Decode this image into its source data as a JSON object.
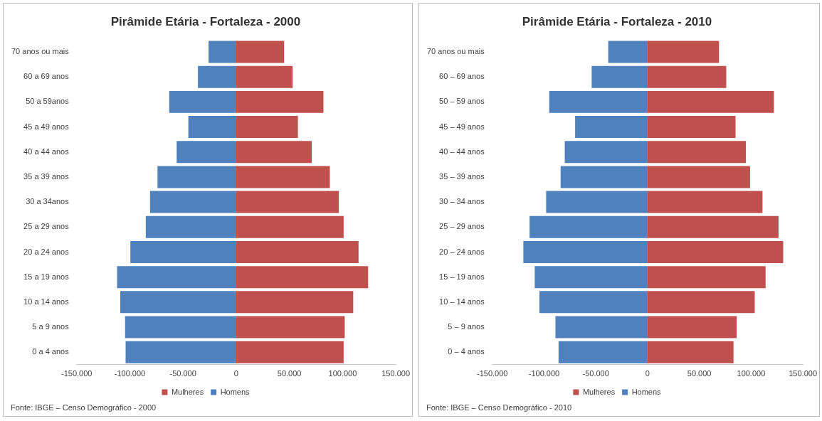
{
  "chart_data": [
    {
      "type": "bar",
      "orientation": "horizontal",
      "stacked": true,
      "title": "Pirâmide Etária - Fortaleza - 2000",
      "categories": [
        "70 anos ou mais",
        "60 a 69 anos",
        "50 a 59anos",
        "45 a 49 anos",
        "40 a 44 anos",
        "35 a 39 anos",
        "30 a 34anos",
        "25 a 29 anos",
        "20 a 24 anos",
        "15 a 19 anos",
        "10 a 14 anos",
        "5 a 9 anos",
        "0 a 4 anos"
      ],
      "series": [
        {
          "name": "Mulheres",
          "color": "#c0504d",
          "values": [
            45000,
            53000,
            82000,
            58000,
            71000,
            88000,
            96500,
            101000,
            115000,
            124000,
            110000,
            102000,
            101000
          ]
        },
        {
          "name": "Homens",
          "color": "#4f81bd",
          "values": [
            -26000,
            -36000,
            -63000,
            -45000,
            -56000,
            -74000,
            -81000,
            -85000,
            -99500,
            -112000,
            -109000,
            -104500,
            -104000
          ]
        }
      ],
      "xlim": [
        -150000,
        150000
      ],
      "xticks": [
        {
          "value": -150000,
          "label": "-150.000"
        },
        {
          "value": -100000,
          "label": "-100.000"
        },
        {
          "value": -50000,
          "label": "-50.000"
        },
        0,
        {
          "value": 50000,
          "label": "50.000"
        },
        {
          "value": 100000,
          "label": "100.000"
        },
        {
          "value": 150000,
          "label": "150.000"
        }
      ],
      "grid": false,
      "legend": "bottom",
      "annotations": [
        "Fonte: IBGE – Censo Demográfico - 2000"
      ]
    },
    {
      "type": "bar",
      "orientation": "horizontal",
      "stacked": true,
      "title": "Pirâmide Etária - Fortaleza - 2010",
      "categories": [
        "70 anos ou mais",
        "60 – 69 anos",
        "50 – 59 anos",
        "45 – 49 anos",
        "40 – 44 anos",
        "35 – 39 anos",
        "30 – 34 anos",
        "25 – 29 anos",
        "20 – 24 anos",
        "15 – 19 anos",
        "10 – 14 anos",
        "5 – 9 anos",
        "0 – 4 anos"
      ],
      "series": [
        {
          "name": "Mulheres",
          "color": "#c0504d",
          "values": [
            69000,
            76000,
            122000,
            85000,
            95000,
            99000,
            111000,
            126500,
            131000,
            114000,
            103500,
            86000,
            83000
          ]
        },
        {
          "name": "Homens",
          "color": "#4f81bd",
          "values": [
            -38000,
            -54000,
            -95000,
            -70000,
            -80000,
            -84000,
            -98000,
            -114000,
            -120000,
            -109000,
            -104500,
            -89000,
            -86000
          ]
        }
      ],
      "xlim": [
        -150000,
        150000
      ],
      "xticks": [
        {
          "value": -150000,
          "label": "-150.000"
        },
        {
          "value": -100000,
          "label": "-100.000"
        },
        {
          "value": -50000,
          "label": "-50.000"
        },
        0,
        {
          "value": 50000,
          "label": "50.000"
        },
        {
          "value": 100000,
          "label": "100.000"
        },
        {
          "value": 150000,
          "label": "150.000"
        }
      ],
      "grid": false,
      "legend": "bottom",
      "annotations": [
        "Fonte: IBGE – Censo Demográfico - 2010"
      ]
    }
  ]
}
